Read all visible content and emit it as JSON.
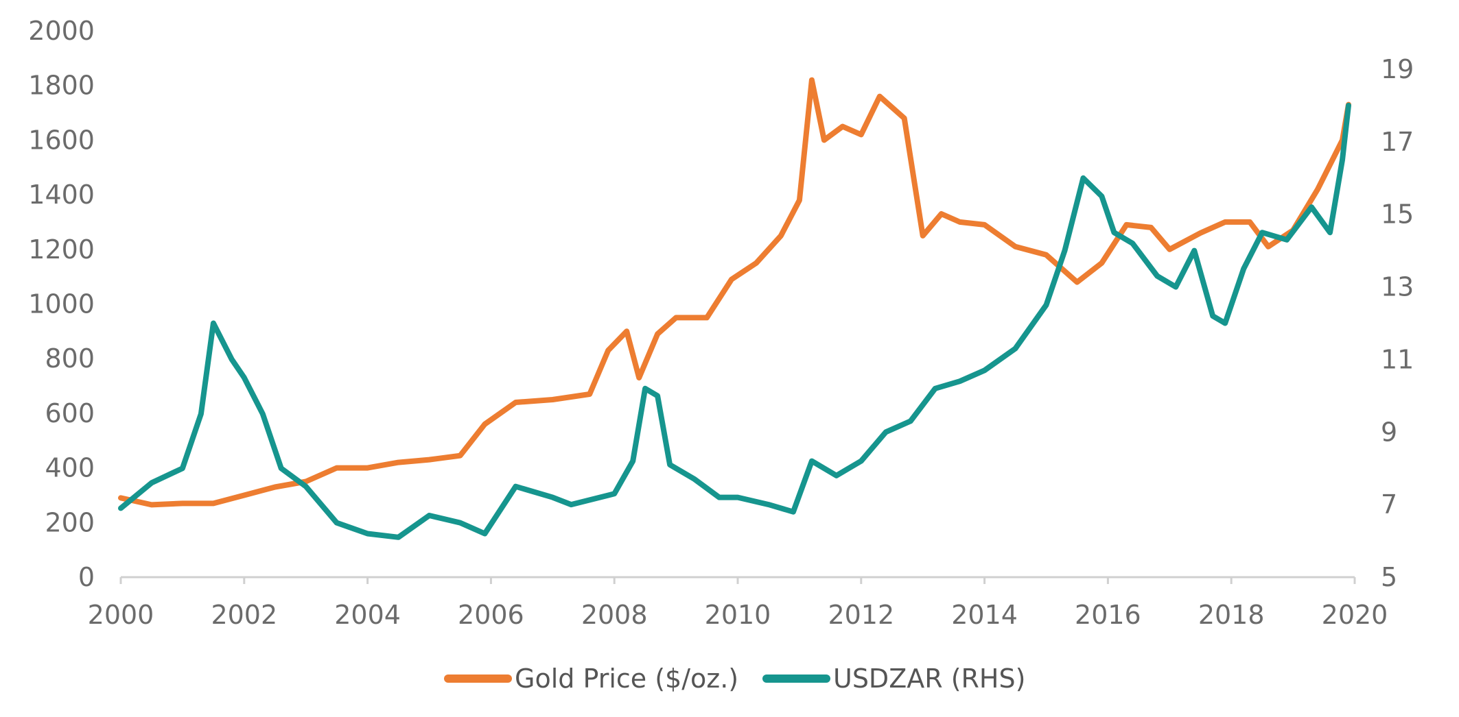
{
  "chart_data": {
    "type": "line",
    "title": "",
    "xlabel": "",
    "ylabel": "",
    "x_range": [
      2000,
      2020
    ],
    "x_ticks": [
      "2000",
      "2002",
      "2004",
      "2006",
      "2008",
      "2010",
      "2012",
      "2014",
      "2016",
      "2018",
      "2020"
    ],
    "y_left": {
      "range": [
        0,
        2000
      ],
      "ticks": [
        "0",
        "200",
        "400",
        "600",
        "800",
        "1000",
        "1200",
        "1400",
        "1600",
        "1800",
        "2000"
      ]
    },
    "y_right": {
      "range": [
        5,
        20
      ],
      "ticks": [
        "5",
        "7",
        "9",
        "11",
        "13",
        "15",
        "17",
        "19"
      ]
    },
    "grid": false,
    "legend_position": "bottom-center",
    "series": [
      {
        "name": "Gold Price ($/oz.)",
        "axis": "left",
        "color": "#ED7D31",
        "x": [
          2000,
          2000.5,
          2001,
          2001.5,
          2002,
          2002.5,
          2003,
          2003.5,
          2004,
          2004.5,
          2005,
          2005.5,
          2005.9,
          2006.4,
          2007,
          2007.6,
          2007.9,
          2008.2,
          2008.4,
          2008.7,
          2009,
          2009.5,
          2009.9,
          2010.3,
          2010.7,
          2011.0,
          2011.2,
          2011.4,
          2011.7,
          2012.0,
          2012.3,
          2012.7,
          2013.0,
          2013.3,
          2013.6,
          2014.0,
          2014.5,
          2015.0,
          2015.5,
          2015.9,
          2016.3,
          2016.7,
          2017.0,
          2017.5,
          2017.9,
          2018.3,
          2018.6,
          2019.0,
          2019.4,
          2019.8,
          2019.9
        ],
        "values": [
          290,
          265,
          270,
          270,
          300,
          330,
          350,
          400,
          400,
          420,
          430,
          445,
          560,
          640,
          650,
          670,
          830,
          900,
          730,
          890,
          950,
          950,
          1090,
          1150,
          1250,
          1380,
          1820,
          1600,
          1650,
          1620,
          1760,
          1680,
          1250,
          1330,
          1300,
          1290,
          1210,
          1180,
          1080,
          1150,
          1290,
          1280,
          1200,
          1260,
          1300,
          1300,
          1210,
          1270,
          1420,
          1600,
          1730
        ]
      },
      {
        "name": "USDZAR (RHS)",
        "axis": "right",
        "color": "#16958E",
        "x": [
          2000,
          2000.5,
          2001,
          2001.3,
          2001.5,
          2001.8,
          2002.0,
          2002.3,
          2002.6,
          2003.0,
          2003.5,
          2004.0,
          2004.5,
          2005.0,
          2005.5,
          2005.9,
          2006.4,
          2007.0,
          2007.3,
          2008.0,
          2008.3,
          2008.5,
          2008.7,
          2008.9,
          2009.3,
          2009.7,
          2010.0,
          2010.5,
          2010.9,
          2011.2,
          2011.6,
          2012.0,
          2012.4,
          2012.8,
          2013.2,
          2013.6,
          2014.0,
          2014.5,
          2015.0,
          2015.3,
          2015.6,
          2015.9,
          2016.1,
          2016.4,
          2016.8,
          2017.1,
          2017.4,
          2017.7,
          2017.9,
          2018.2,
          2018.5,
          2018.9,
          2019.3,
          2019.6,
          2019.8,
          2019.9
        ],
        "values": [
          6.9,
          7.6,
          8.0,
          9.5,
          12.0,
          11.0,
          10.5,
          9.5,
          8.0,
          7.5,
          6.5,
          6.2,
          6.1,
          6.7,
          6.5,
          6.2,
          7.5,
          7.2,
          7.0,
          7.3,
          8.2,
          10.2,
          10.0,
          8.1,
          7.7,
          7.2,
          7.2,
          7.0,
          6.8,
          8.2,
          7.8,
          8.2,
          9.0,
          9.3,
          10.2,
          10.4,
          10.7,
          11.3,
          12.5,
          14.0,
          16.0,
          15.5,
          14.5,
          14.2,
          13.3,
          13.0,
          14.0,
          12.2,
          12.0,
          13.5,
          14.5,
          14.3,
          15.2,
          14.5,
          16.5,
          18.0
        ]
      }
    ]
  }
}
